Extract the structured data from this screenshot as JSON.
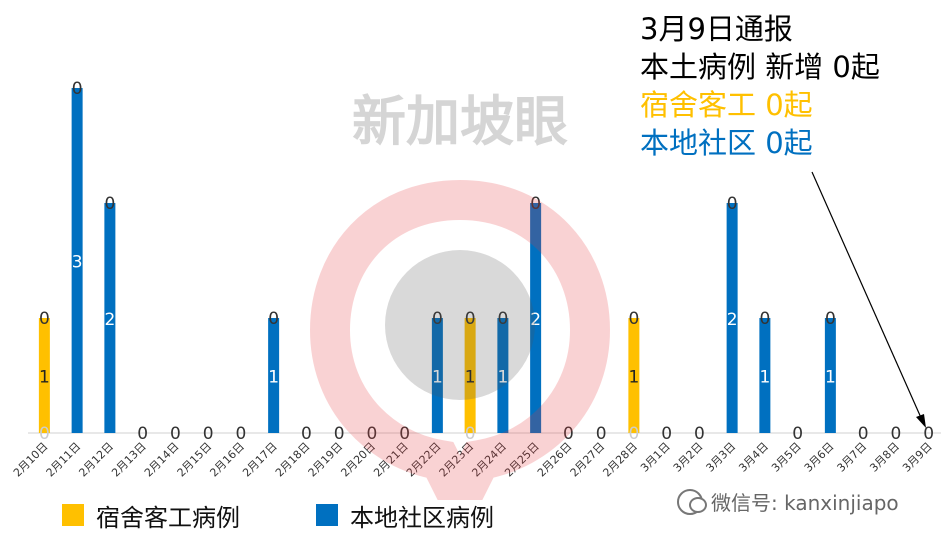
{
  "chart_data": {
    "type": "bar",
    "categories": [
      "2月10日",
      "2月11日",
      "2月12日",
      "2月13日",
      "2月14日",
      "2月15日",
      "2月16日",
      "2月17日",
      "2月18日",
      "2月19日",
      "2月20日",
      "2月21日",
      "2月22日",
      "2月23日",
      "2月24日",
      "2月25日",
      "2月26日",
      "2月27日",
      "2月28日",
      "3月1日",
      "3月2日",
      "3月3日",
      "3月4日",
      "3月5日",
      "3月6日",
      "3月7日",
      "3月8日",
      "3月9日"
    ],
    "series": [
      {
        "name": "宿舍客工病例",
        "color": "#FFC000",
        "values": [
          1,
          0,
          0,
          0,
          0,
          0,
          0,
          0,
          0,
          0,
          0,
          0,
          0,
          1,
          0,
          0,
          0,
          0,
          1,
          0,
          0,
          0,
          0,
          0,
          0,
          0,
          0,
          0
        ]
      },
      {
        "name": "本地社区病例",
        "color": "#0070C0",
        "values": [
          0,
          3,
          2,
          0,
          0,
          0,
          0,
          1,
          0,
          0,
          0,
          0,
          1,
          0,
          1,
          2,
          0,
          0,
          0,
          0,
          0,
          2,
          1,
          0,
          1,
          0,
          0,
          0
        ]
      }
    ],
    "ylim": [
      0,
      3
    ],
    "grid": false,
    "legend": "bottom-left"
  },
  "info": {
    "line1": "3月9日通报",
    "line2": "本土病例 新增 0起",
    "line3": "宿舍客工 0起",
    "line4": "本地社区 0起"
  },
  "legend": {
    "item1": "宿舍客工病例",
    "item2": "本地社区病例"
  },
  "logo_text": "新加坡眼",
  "watermark_text": "微信号: kanxinjiapo",
  "colors": {
    "dorm": "#FFC000",
    "community": "#0070C0",
    "logo": "#E8383D"
  }
}
